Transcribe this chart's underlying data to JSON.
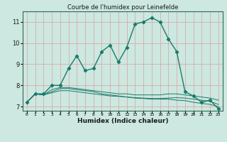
{
  "title": "Courbe de l'humidex pour Leinefelde",
  "xlabel": "Humidex (Indice chaleur)",
  "ylabel": "",
  "xlim": [
    -0.5,
    23.5
  ],
  "ylim": [
    6.8,
    11.5
  ],
  "yticks": [
    7,
    8,
    9,
    10,
    11
  ],
  "xticks": [
    0,
    1,
    2,
    3,
    4,
    5,
    6,
    7,
    8,
    9,
    10,
    11,
    12,
    13,
    14,
    15,
    16,
    17,
    18,
    19,
    20,
    21,
    22,
    23
  ],
  "bg_color": "#cce8e0",
  "grid_color": "#dda0a0",
  "line_color": "#1a7a6a",
  "line1_x": [
    0,
    1,
    2,
    3,
    4,
    5,
    6,
    7,
    8,
    9,
    10,
    11,
    12,
    13,
    14,
    15,
    16,
    17,
    18,
    19,
    20,
    21,
    22,
    23
  ],
  "line1_y": [
    7.2,
    7.6,
    7.6,
    8.0,
    8.0,
    8.8,
    9.4,
    8.7,
    8.8,
    9.6,
    9.9,
    9.1,
    9.8,
    10.9,
    11.0,
    11.2,
    11.0,
    10.2,
    9.6,
    7.7,
    7.5,
    7.2,
    7.3,
    6.9
  ],
  "line2_x": [
    0,
    1,
    2,
    3,
    4,
    5,
    6,
    7,
    8,
    9,
    10,
    11,
    12,
    13,
    14,
    15,
    16,
    17,
    18,
    19,
    20,
    21,
    22,
    23
  ],
  "line2_y": [
    7.2,
    7.6,
    7.55,
    7.8,
    7.9,
    7.9,
    7.85,
    7.8,
    7.75,
    7.7,
    7.65,
    7.6,
    7.6,
    7.55,
    7.55,
    7.55,
    7.55,
    7.6,
    7.6,
    7.55,
    7.5,
    7.45,
    7.4,
    7.3
  ],
  "line3_x": [
    0,
    1,
    2,
    3,
    4,
    5,
    6,
    7,
    8,
    9,
    10,
    11,
    12,
    13,
    14,
    15,
    16,
    17,
    18,
    19,
    20,
    21,
    22,
    23
  ],
  "line3_y": [
    7.2,
    7.6,
    7.55,
    7.7,
    7.85,
    7.85,
    7.8,
    7.75,
    7.7,
    7.6,
    7.55,
    7.5,
    7.45,
    7.4,
    7.38,
    7.35,
    7.35,
    7.35,
    7.3,
    7.28,
    7.2,
    7.15,
    7.1,
    7.0
  ],
  "line4_x": [
    0,
    1,
    2,
    3,
    4,
    5,
    6,
    7,
    8,
    9,
    10,
    11,
    12,
    13,
    14,
    15,
    16,
    17,
    18,
    19,
    20,
    21,
    22,
    23
  ],
  "line4_y": [
    7.2,
    7.6,
    7.55,
    7.65,
    7.75,
    7.75,
    7.7,
    7.65,
    7.6,
    7.55,
    7.5,
    7.48,
    7.45,
    7.42,
    7.4,
    7.38,
    7.38,
    7.4,
    7.42,
    7.4,
    7.35,
    7.3,
    7.25,
    7.1
  ]
}
